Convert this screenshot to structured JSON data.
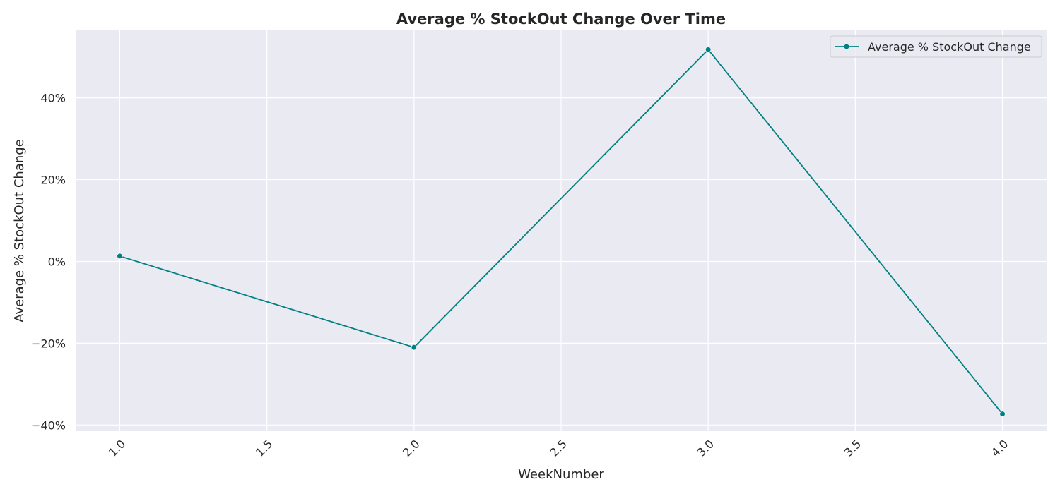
{
  "chart_data": {
    "type": "line",
    "title": "Average % StockOut Change Over Time",
    "xlabel": "WeekNumber",
    "ylabel": "Average % StockOut Change",
    "xlim": [
      0.85,
      4.15
    ],
    "ylim": [
      -41.5,
      56.5
    ],
    "x_ticks": [
      1.0,
      1.5,
      2.0,
      2.5,
      3.0,
      3.5,
      4.0
    ],
    "x_tick_labels": [
      "1.0",
      "1.5",
      "2.0",
      "2.5",
      "3.0",
      "3.5",
      "4.0"
    ],
    "y_ticks": [
      -40,
      -20,
      0,
      20,
      40
    ],
    "y_tick_labels": [
      "−40%",
      "−20%",
      "0%",
      "20%",
      "40%"
    ],
    "grid": true,
    "legend_position": "top-right",
    "series": [
      {
        "name": "Average % StockOut Change",
        "color": "#008080",
        "marker": "circle",
        "x": [
          1.0,
          2.0,
          3.0,
          4.0
        ],
        "y": [
          1.3,
          -21.0,
          51.8,
          -37.3
        ]
      }
    ]
  }
}
